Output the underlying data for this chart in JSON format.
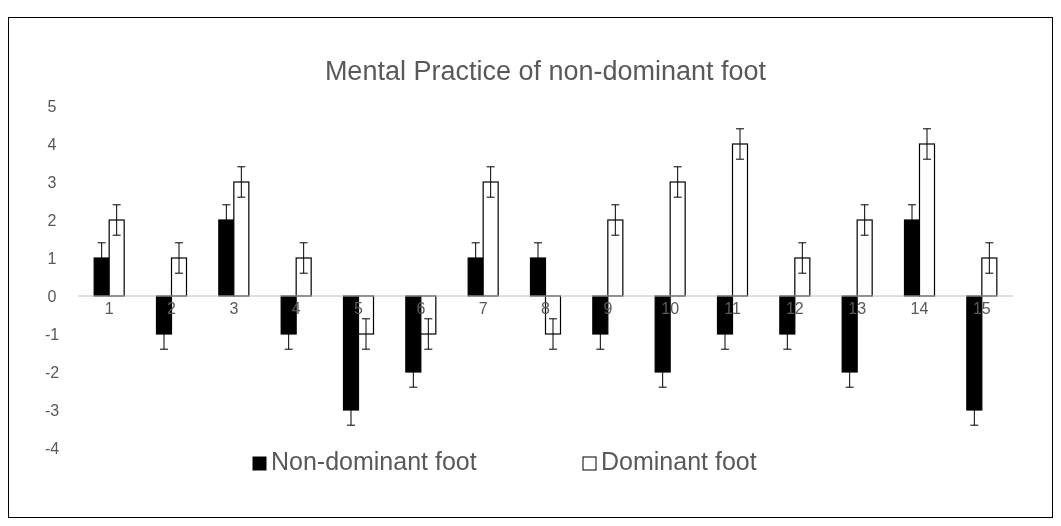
{
  "chart_data": {
    "type": "bar",
    "title": "Mental Practice of non-dominant foot",
    "categories": [
      "1",
      "2",
      "3",
      "4",
      "5",
      "6",
      "7",
      "8",
      "9",
      "10",
      "11",
      "12",
      "13",
      "14",
      "15"
    ],
    "series": [
      {
        "name": "Non-dominant foot",
        "color": "#000000",
        "values": [
          1,
          -1,
          2,
          -1,
          -3,
          -2,
          1,
          1,
          -1,
          -2,
          -1,
          -1,
          -2,
          2,
          -3
        ],
        "errors": [
          0.4,
          0.4,
          0.4,
          0.4,
          0.4,
          0.4,
          0.4,
          0.4,
          0.4,
          0.4,
          0.4,
          0.4,
          0.4,
          0.4,
          0.4
        ]
      },
      {
        "name": "Dominant foot",
        "color": "#ffffff",
        "values": [
          2,
          1,
          3,
          1,
          -1,
          -1,
          3,
          -1,
          2,
          3,
          4,
          1,
          2,
          4,
          1
        ],
        "errors": [
          0.4,
          0.4,
          0.4,
          0.4,
          0.4,
          0.4,
          0.4,
          0.4,
          0.4,
          0.4,
          0.4,
          0.4,
          0.4,
          0.4,
          0.4
        ]
      }
    ],
    "ylim": [
      -4,
      5
    ],
    "yticks": [
      -4,
      -3,
      -2,
      -1,
      0,
      1,
      2,
      3,
      4,
      5
    ],
    "grid": false,
    "legend": "bottom"
  }
}
